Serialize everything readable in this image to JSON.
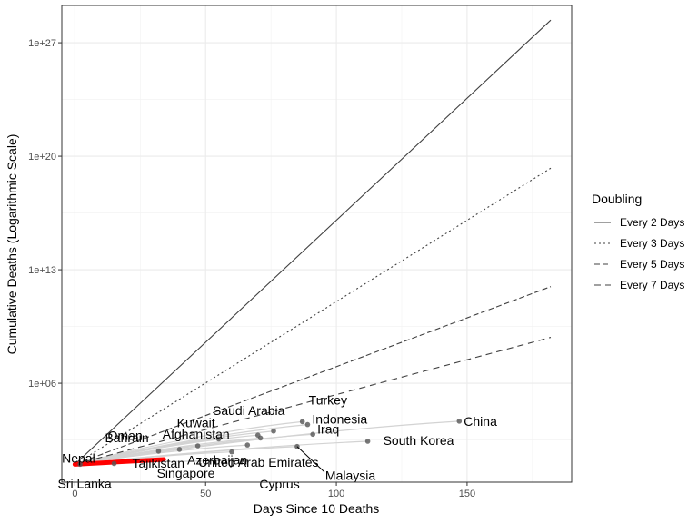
{
  "chart_data": {
    "type": "scatter",
    "xlabel": "Days Since 10 Deaths",
    "ylabel": "Cumulative Deaths (Logarithmic Scale)",
    "xlim": [
      -5,
      190
    ],
    "ylim_log10": [
      -0.1,
      29.3
    ],
    "x_ticks": [
      0,
      50,
      100,
      150
    ],
    "x_tick_labels": [
      "0",
      "50",
      "100",
      "150"
    ],
    "y_ticks_log10": [
      6,
      13,
      20,
      27
    ],
    "y_tick_labels": [
      "1e+06",
      "1e+13",
      "1e+20",
      "1e+27"
    ],
    "grid": true,
    "legend": {
      "title": "Doubling",
      "position": "right",
      "entries": [
        {
          "label": "Every 2 Days",
          "dash": ""
        },
        {
          "label": "Every 3 Days",
          "dash": "2,3"
        },
        {
          "label": "Every 5 Days",
          "dash": "6,3"
        },
        {
          "label": "Every 7 Days",
          "dash": "7,5"
        }
      ]
    },
    "doubling_lines": [
      {
        "name": "Every 2 Days",
        "days": 2,
        "x_end": 182
      },
      {
        "name": "Every 3 Days",
        "days": 3,
        "x_end": 182
      },
      {
        "name": "Every 5 Days",
        "days": 5,
        "x_end": 182
      },
      {
        "name": "Every 7 Days",
        "days": 7,
        "x_end": 182
      }
    ],
    "countries": [
      {
        "name": "China",
        "x": 147,
        "log10_deaths": 3.66
      },
      {
        "name": "South Korea",
        "x": 112,
        "log10_deaths": 2.42
      },
      {
        "name": "Turkey",
        "x": 87,
        "log10_deaths": 3.63
      },
      {
        "name": "Indonesia",
        "x": 89,
        "log10_deaths": 3.45
      },
      {
        "name": "Iraq",
        "x": 91,
        "log10_deaths": 2.85
      },
      {
        "name": "Saudi Arabia",
        "x": 76,
        "log10_deaths": 3.05
      },
      {
        "name": "Kuwait",
        "x": 71,
        "log10_deaths": 2.62
      },
      {
        "name": "Afghanistan",
        "x": 70,
        "log10_deaths": 2.8
      },
      {
        "name": "Oman",
        "x": 55,
        "log10_deaths": 2.56
      },
      {
        "name": "Malaysia",
        "x": 85,
        "log10_deaths": 2.1
      },
      {
        "name": "United Arab Emirates",
        "x": 66,
        "log10_deaths": 2.19
      },
      {
        "name": "Azerbaijan",
        "x": 60,
        "log10_deaths": 1.77
      },
      {
        "name": "Cyprus",
        "x": 65,
        "log10_deaths": 1.25
      },
      {
        "name": "Singapore",
        "x": 47,
        "log10_deaths": 2.14
      },
      {
        "name": "Bahrain",
        "x": 40,
        "log10_deaths": 1.92
      },
      {
        "name": "Tajikistan",
        "x": 32,
        "log10_deaths": 1.81
      },
      {
        "name": "Sri Lanka",
        "x": 15,
        "log10_deaths": 1.05
      },
      {
        "name": "Nepal",
        "x": 2,
        "log10_deaths": 1.0
      }
    ],
    "highlight": {
      "x_start": 0,
      "x_end": 34,
      "log10_start": 1.0,
      "log10_end": 1.3,
      "color": "#ff0000"
    }
  }
}
